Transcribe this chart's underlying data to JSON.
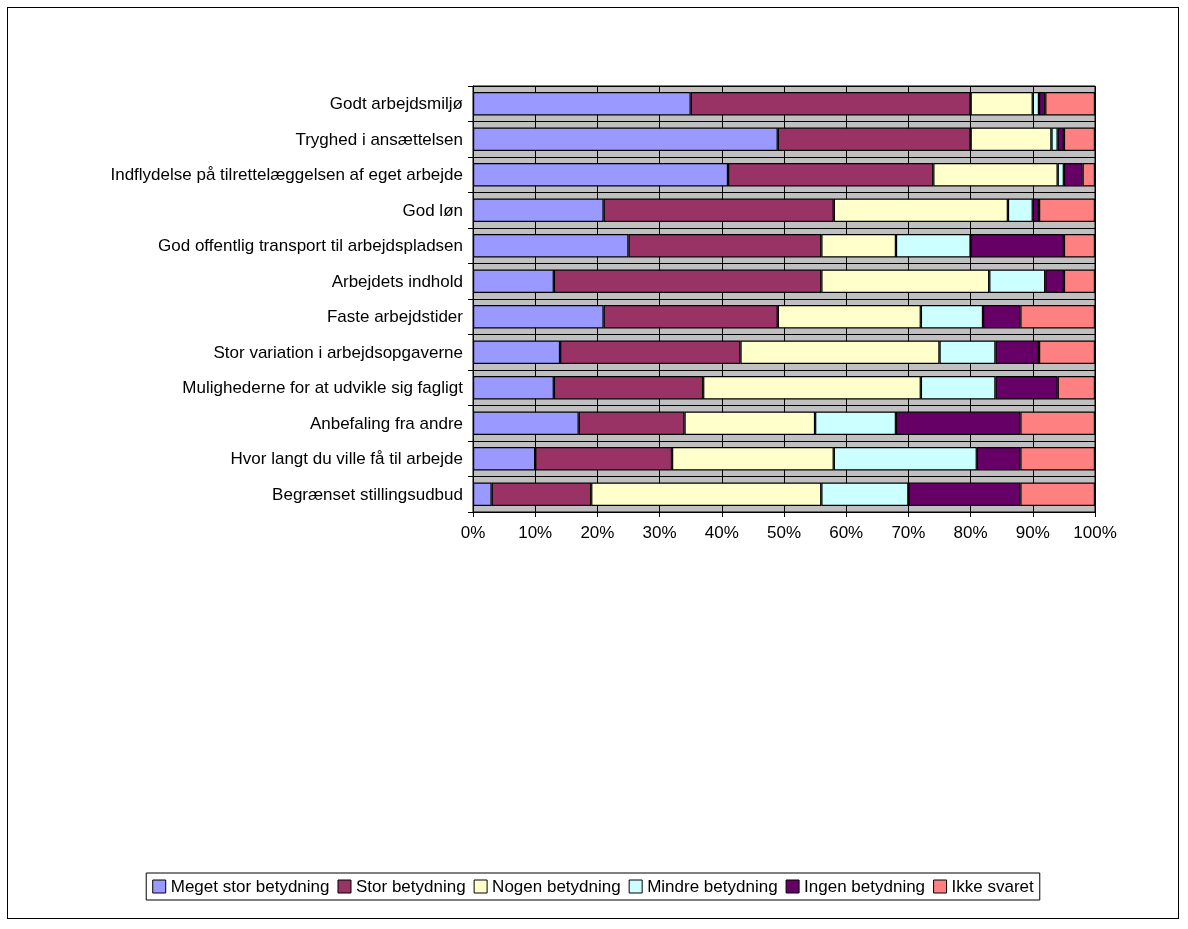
{
  "chart_data": {
    "type": "bar",
    "orientation": "horizontal",
    "stacked": true,
    "categories": [
      "Godt arbejdsmiljø",
      "Tryghed i ansættelsen",
      "Indflydelse på tilrettelæggelsen af eget arbejde",
      "God løn",
      "God offentlig transport til arbejdspladsen",
      "Arbejdets indhold",
      "Faste arbejdstider",
      "Stor variation i arbejdsopgaverne",
      "Mulighederne for at udvikle sig fagligt",
      "Anbefaling fra andre",
      "Hvor langt du ville få til arbejde",
      "Begrænset stillingsudbud"
    ],
    "series": [
      {
        "name": "Meget stor betydning",
        "color": "#9999ff",
        "values": [
          35,
          49,
          41,
          21,
          25,
          13,
          21,
          14,
          13,
          17,
          10,
          3
        ]
      },
      {
        "name": "Stor betydning",
        "color": "#993366",
        "values": [
          45,
          31,
          33,
          37,
          31,
          43,
          28,
          29,
          24,
          17,
          22,
          16
        ]
      },
      {
        "name": "Nogen betydning",
        "color": "#ffffcc",
        "values": [
          10,
          13,
          20,
          28,
          12,
          27,
          23,
          32,
          35,
          21,
          26,
          37
        ]
      },
      {
        "name": "Mindre betydning",
        "color": "#ccffff",
        "values": [
          1,
          1,
          1,
          4,
          12,
          9,
          10,
          9,
          12,
          13,
          23,
          14
        ]
      },
      {
        "name": "Ingen betydning",
        "color": "#660066",
        "values": [
          1,
          1,
          3,
          1,
          15,
          3,
          6,
          7,
          10,
          20,
          7,
          18
        ]
      },
      {
        "name": "Ikke svaret",
        "color": "#ff8080",
        "values": [
          8,
          5,
          2,
          9,
          5,
          5,
          12,
          9,
          6,
          12,
          12,
          12
        ]
      }
    ],
    "xlim": [
      0,
      100
    ],
    "xticks": [
      {
        "value": 0,
        "label": "0%"
      },
      {
        "value": 10,
        "label": "10%"
      },
      {
        "value": 20,
        "label": "20%"
      },
      {
        "value": 30,
        "label": "30%"
      },
      {
        "value": 40,
        "label": "40%"
      },
      {
        "value": 50,
        "label": "50%"
      },
      {
        "value": 60,
        "label": "60%"
      },
      {
        "value": 70,
        "label": "70%"
      },
      {
        "value": 80,
        "label": "80%"
      },
      {
        "value": 90,
        "label": "90%"
      },
      {
        "value": 100,
        "label": "100%"
      }
    ],
    "grid": true,
    "legend": "bottom"
  }
}
